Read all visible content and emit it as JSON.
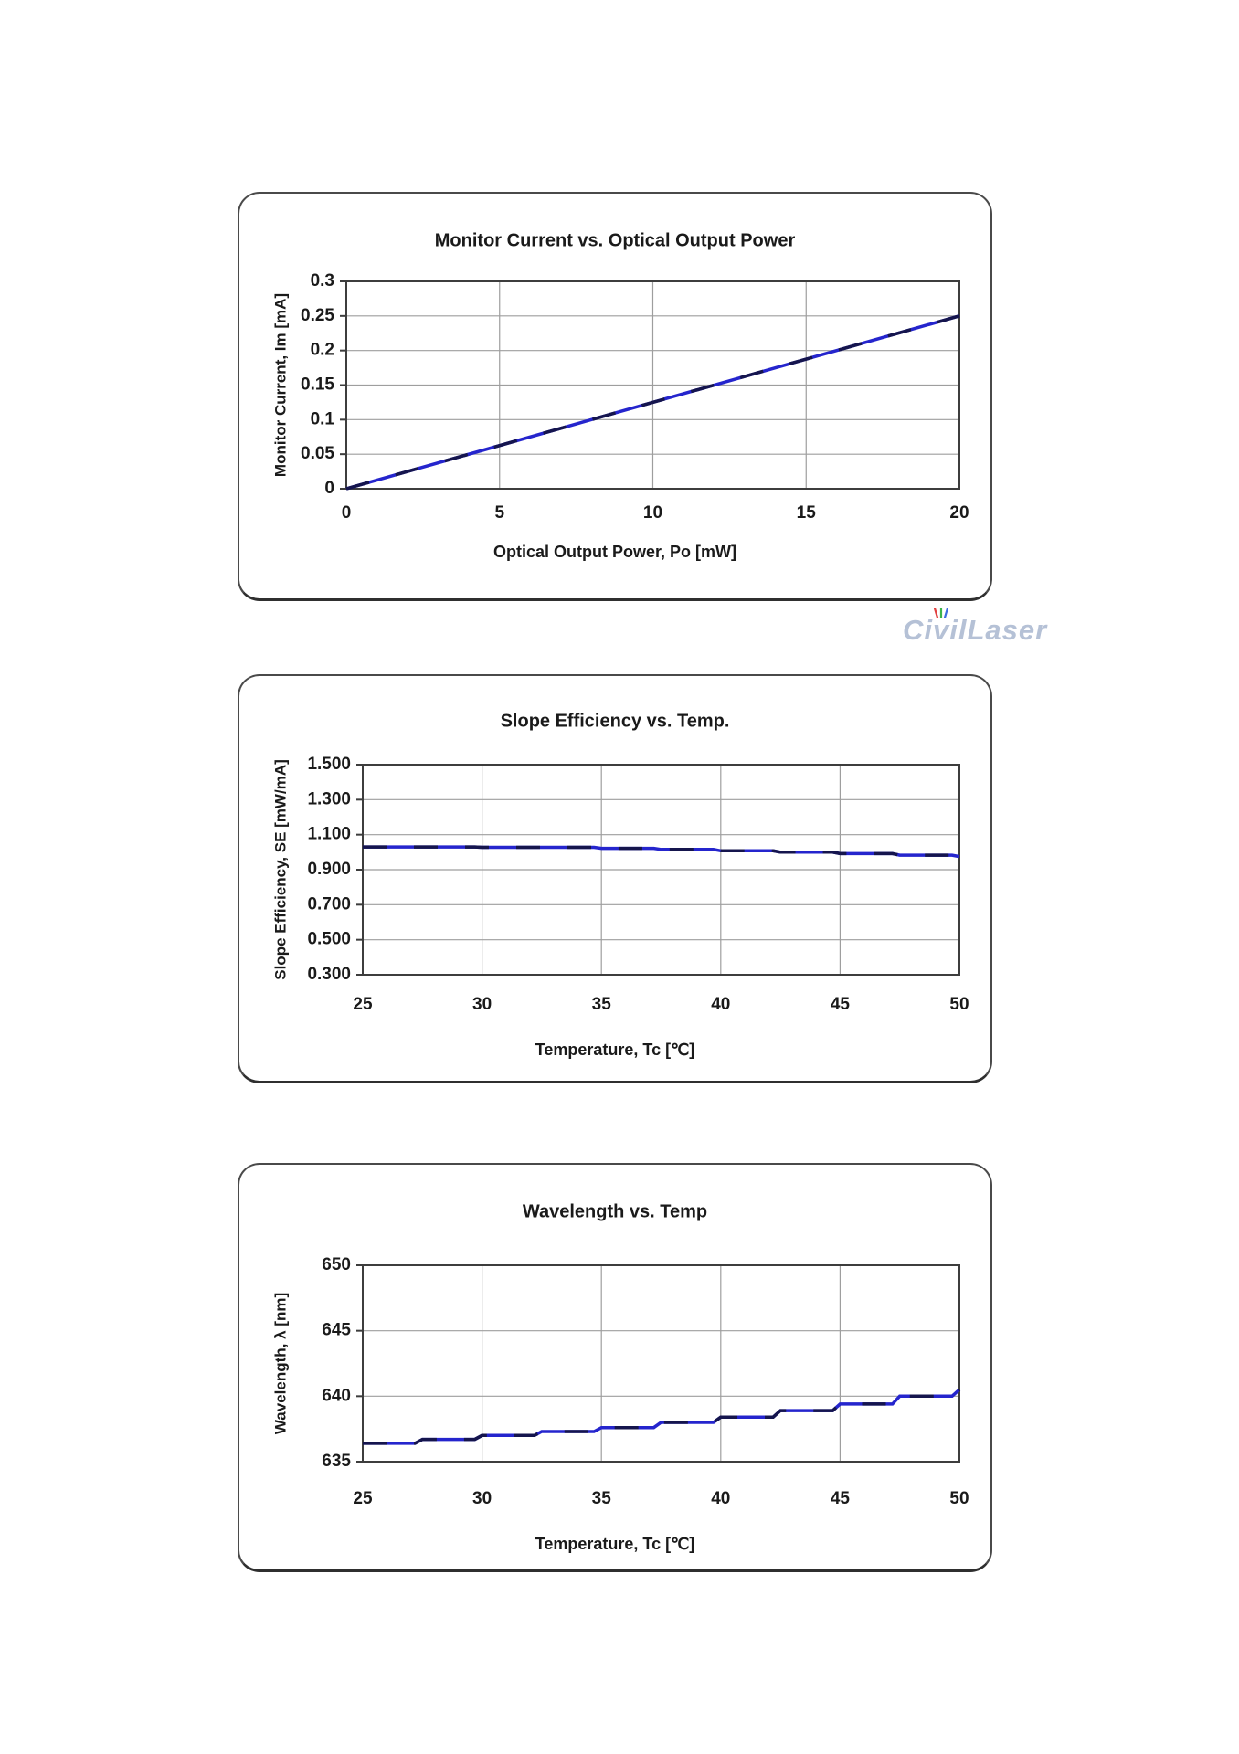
{
  "page": {
    "background": "#ffffff"
  },
  "watermark": {
    "full_text": "CivilLaser",
    "text_pre": "Ci",
    "text_v": "v",
    "text_post": "ilLaser",
    "color": "#b5c1d6",
    "accent_colors": [
      "#e04040",
      "#3cb44b",
      "#3c6de0"
    ]
  },
  "colors": {
    "line_blue": "#2525cd",
    "line_navy_dash": "#15154d",
    "grid": "#9e9e9e",
    "plot_border": "#3d3d3d",
    "text": "#1a1a1a"
  },
  "chart_data": [
    {
      "type": "line",
      "line_style": "straight",
      "title": "Monitor Current vs. Optical Output Power",
      "xlabel": "Optical Output Power, Po [mW]",
      "ylabel": "Monitor Current, Im [mA]",
      "xlim": [
        0,
        20
      ],
      "ylim": [
        0,
        0.3
      ],
      "grid": true,
      "legend": "none",
      "xticks": [
        0,
        5,
        10,
        15,
        20
      ],
      "xtick_labels": [
        "0",
        "5",
        "10",
        "15",
        "20"
      ],
      "yticks": [
        0,
        0.05,
        0.1,
        0.15,
        0.2,
        0.25,
        0.3
      ],
      "ytick_labels": [
        "0",
        "0.05",
        "0.1",
        "0.15",
        "0.2",
        "0.25",
        "0.3"
      ],
      "x": [
        0,
        20
      ],
      "y": [
        0,
        0.25
      ]
    },
    {
      "type": "line",
      "line_style": "step",
      "title": "Slope Efficiency vs. Temp.",
      "xlabel": "Temperature, Tc [℃]",
      "ylabel": "Slope Efficiency, SE [mW/mA]",
      "xlim": [
        25,
        50
      ],
      "ylim": [
        0.3,
        1.5
      ],
      "grid": true,
      "legend": "none",
      "xticks": [
        25,
        30,
        35,
        40,
        45,
        50
      ],
      "xtick_labels": [
        "25",
        "30",
        "35",
        "40",
        "45",
        "50"
      ],
      "yticks": [
        0.3,
        0.5,
        0.7,
        0.9,
        1.1,
        1.3,
        1.5
      ],
      "ytick_labels": [
        "0.300",
        "0.500",
        "0.700",
        "0.900",
        "1.100",
        "1.300",
        "1.500"
      ],
      "x": [
        25,
        30,
        35,
        37.5,
        40,
        42.5,
        45,
        47.5,
        50
      ],
      "y": [
        1.03,
        1.028,
        1.022,
        1.016,
        1.008,
        1.0,
        0.992,
        0.983,
        0.975
      ]
    },
    {
      "type": "line",
      "line_style": "step",
      "title": "Wavelength vs. Temp",
      "xlabel": "Temperature, Tc [℃]",
      "ylabel": "Wavelength, λ [nm]",
      "xlim": [
        25,
        50
      ],
      "ylim": [
        635,
        650
      ],
      "grid": true,
      "legend": "none",
      "xticks": [
        25,
        30,
        35,
        40,
        45,
        50
      ],
      "xtick_labels": [
        "25",
        "30",
        "35",
        "40",
        "45",
        "50"
      ],
      "yticks": [
        635,
        640,
        645,
        650
      ],
      "ytick_labels": [
        "635",
        "640",
        "645",
        "650"
      ],
      "x": [
        25,
        27.5,
        30,
        32.5,
        35,
        37.5,
        40,
        42.5,
        45,
        47.5,
        50
      ],
      "y": [
        636.4,
        636.7,
        637.0,
        637.3,
        637.6,
        638.0,
        638.4,
        638.9,
        639.4,
        640.0,
        640.5
      ]
    }
  ]
}
